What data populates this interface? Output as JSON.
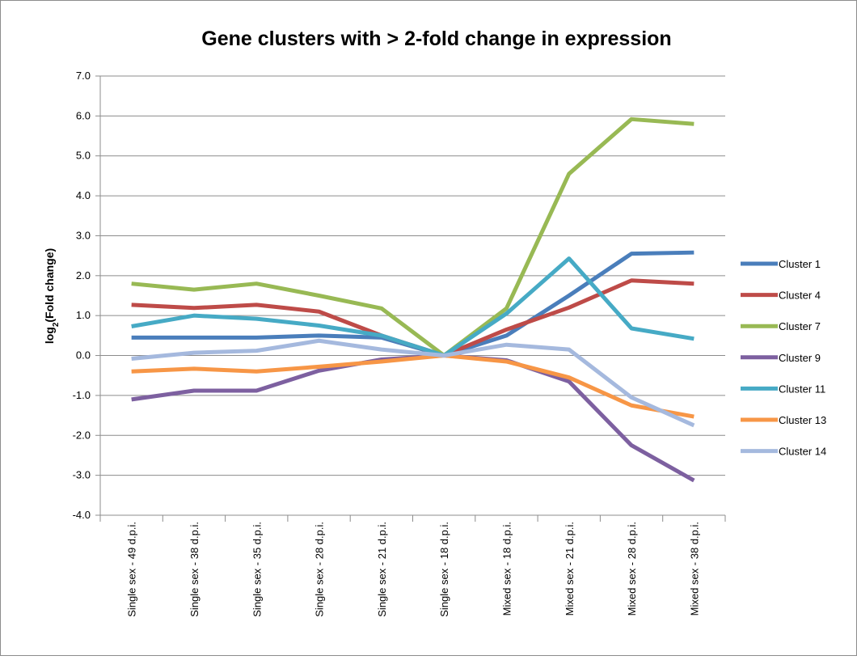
{
  "chart_data": {
    "type": "line",
    "title": "Gene clusters with > 2-fold change in expression",
    "y_label": "log2(Fold change)",
    "categories": [
      "Single sex - 49 d.p.i.",
      "Single sex - 38 d.p.i.",
      "Single sex - 35 d.p.i.",
      "Single sex - 28 d.p.i.",
      "Single sex - 21 d.p.i.",
      "Single sex - 18 d.p.i.",
      "Mixed sex - 18 d.p.i.",
      "Mixed sex - 21 d.p.i.",
      "Mixed sex - 28 d.p.i.",
      "Mixed sex - 38 d.p.i."
    ],
    "series": [
      {
        "name": "Cluster 1",
        "color": "#4a7ebb",
        "values": [
          0.45,
          0.45,
          0.45,
          0.5,
          0.45,
          0,
          0.5,
          1.5,
          2.55,
          2.58
        ]
      },
      {
        "name": "Cluster 4",
        "color": "#be4b48",
        "values": [
          1.27,
          1.19,
          1.27,
          1.1,
          0.5,
          0,
          0.65,
          1.2,
          1.88,
          1.8
        ]
      },
      {
        "name": "Cluster 7",
        "color": "#98b954",
        "values": [
          1.8,
          1.65,
          1.8,
          1.5,
          1.18,
          0,
          1.18,
          4.55,
          5.92,
          5.8
        ]
      },
      {
        "name": "Cluster 9",
        "color": "#7d60a0",
        "values": [
          -1.1,
          -0.88,
          -0.88,
          -0.38,
          -0.1,
          0,
          -0.12,
          -0.65,
          -2.25,
          -3.13
        ]
      },
      {
        "name": "Cluster 11",
        "color": "#46aac5",
        "values": [
          0.73,
          1.0,
          0.92,
          0.75,
          0.5,
          0,
          1.05,
          2.43,
          0.68,
          0.42
        ]
      },
      {
        "name": "Cluster 13",
        "color": "#f79646",
        "values": [
          -0.4,
          -0.33,
          -0.4,
          -0.28,
          -0.15,
          0,
          -0.15,
          -0.55,
          -1.25,
          -1.53
        ]
      },
      {
        "name": "Cluster 14",
        "color": "#a5b9de",
        "values": [
          -0.08,
          0.07,
          0.12,
          0.37,
          0.15,
          0,
          0.27,
          0.15,
          -1.05,
          -1.75
        ]
      }
    ],
    "ylim": [
      -4,
      7
    ],
    "yticks": [
      {
        "value": -4,
        "label": "-4.0"
      },
      {
        "value": -3,
        "label": "-3.0"
      },
      {
        "value": -2,
        "label": "-2.0"
      },
      {
        "value": -1,
        "label": "-1.0"
      },
      {
        "value": 0,
        "label": "0.0"
      },
      {
        "value": 1,
        "label": "1.0"
      },
      {
        "value": 2,
        "label": "2.0"
      },
      {
        "value": 3,
        "label": "3.0"
      },
      {
        "value": 4,
        "label": "4.0"
      },
      {
        "value": 5,
        "label": "5.0"
      },
      {
        "value": 6,
        "label": "6.0"
      },
      {
        "value": 7,
        "label": "7.0"
      }
    ],
    "grid": true,
    "legend": "right"
  }
}
